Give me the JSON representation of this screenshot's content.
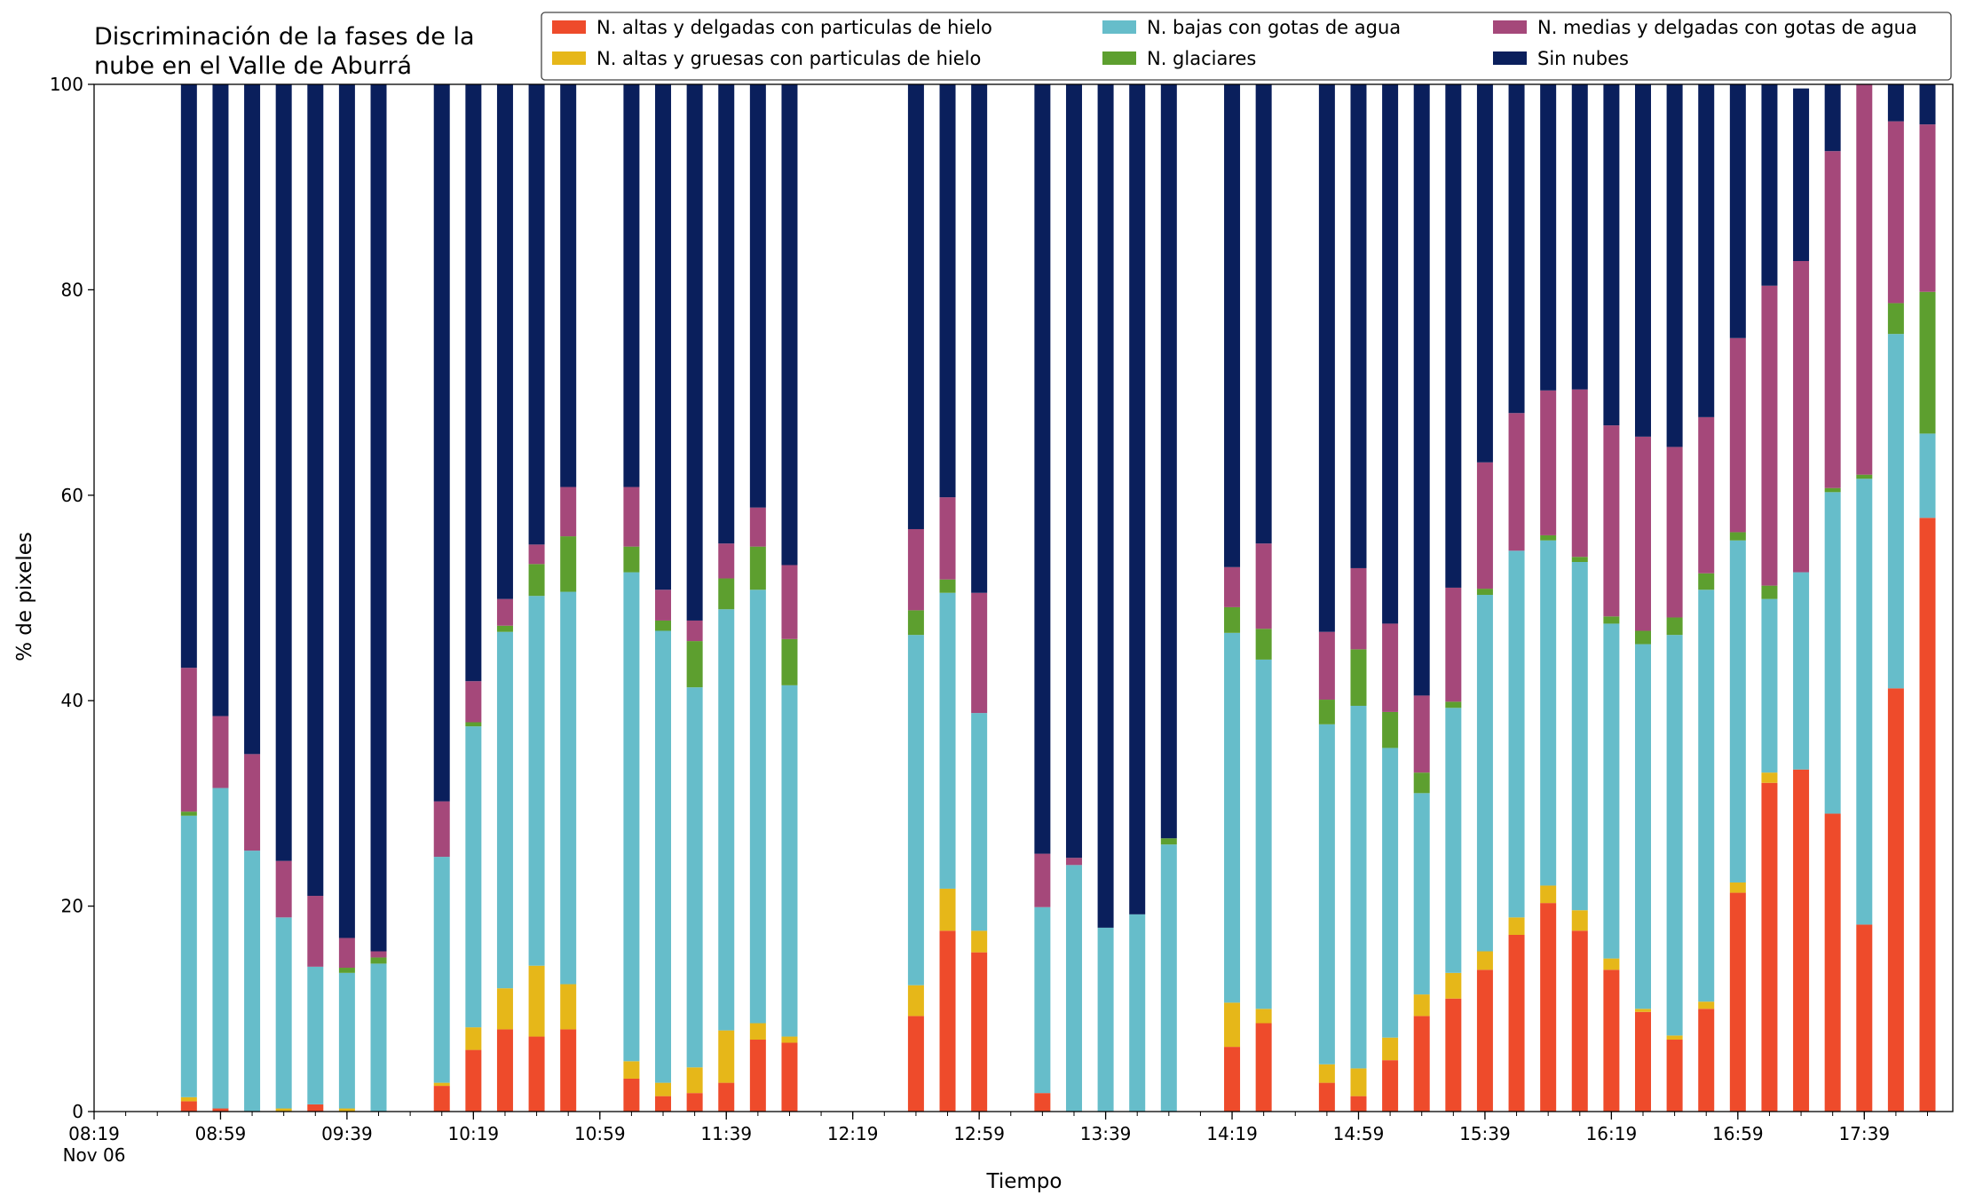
{
  "chart_data": {
    "type": "bar",
    "stacked": true,
    "title_lines": [
      "Discriminación de la fases de la",
      "nube en el Valle de Aburrá"
    ],
    "xlabel": "Tiempo",
    "ylabel": "% de pixeles",
    "ylim": [
      0,
      100
    ],
    "yticks": [
      "0",
      "20",
      "40",
      "60",
      "80",
      "100"
    ],
    "x_date_label": "Nov 06",
    "x_tick_labels": [
      "08:19",
      "08:59",
      "09:39",
      "10:19",
      "10:59",
      "11:39",
      "12:19",
      "12:59",
      "13:39",
      "14:19",
      "14:59",
      "15:39",
      "16:19",
      "16:59",
      "17:39"
    ],
    "x_start": "08:19",
    "x_end": "18:07",
    "minor_tick_step_minutes": 10,
    "times": [
      "08:49",
      "08:59",
      "09:09",
      "09:19",
      "09:29",
      "09:39",
      "09:49",
      "10:09",
      "10:19",
      "10:29",
      "10:39",
      "10:49",
      "11:09",
      "11:19",
      "11:29",
      "11:39",
      "11:49",
      "11:59",
      "12:39",
      "12:49",
      "12:59",
      "13:19",
      "13:29",
      "13:39",
      "13:49",
      "13:59",
      "14:19",
      "14:29",
      "14:49",
      "14:59",
      "15:09",
      "15:19",
      "15:29",
      "15:39",
      "15:49",
      "15:59",
      "16:09",
      "16:19",
      "16:29",
      "16:39",
      "16:49",
      "16:59",
      "17:09",
      "17:19",
      "17:29",
      "17:39",
      "17:49",
      "17:59"
    ],
    "series": [
      {
        "name": "N. altas y delgadas con particulas de hielo",
        "color": "#ee4b2b",
        "values": [
          1,
          0.3,
          0,
          0,
          0.7,
          0,
          0,
          2.5,
          6,
          8,
          7.3,
          8,
          3.2,
          1.5,
          1.8,
          2.8,
          7,
          6.7,
          9.3,
          17.6,
          15.5,
          1.8,
          0,
          0,
          0,
          0,
          6.3,
          8.6,
          2.8,
          1.5,
          5,
          9.3,
          11,
          13.8,
          17.2,
          20.3,
          17.6,
          13.8,
          9.7,
          7,
          10,
          21.3,
          32,
          33.3,
          29,
          18.2,
          41.2,
          57.8
        ]
      },
      {
        "name": "N. altas y gruesas con particulas de hielo",
        "color": "#e6b719",
        "values": [
          0.4,
          0,
          0,
          0.3,
          0,
          0.3,
          0,
          0.3,
          2.2,
          4,
          6.9,
          4.4,
          1.7,
          1.3,
          2.5,
          5.1,
          1.6,
          0.6,
          3,
          4.1,
          2.1,
          0,
          0,
          0,
          0,
          0,
          4.3,
          1.4,
          1.8,
          2.7,
          2.2,
          2.1,
          2.5,
          1.8,
          1.7,
          1.7,
          2,
          1.1,
          0.3,
          0.4,
          0.7,
          1,
          1,
          0,
          0,
          0,
          0,
          0
        ]
      },
      {
        "name": "N. bajas con gotas de agua",
        "color": "#66bdca",
        "values": [
          27.4,
          31.2,
          25.4,
          18.6,
          13.4,
          13.2,
          14.4,
          22,
          29.3,
          34.7,
          36,
          38.2,
          47.6,
          44,
          37,
          41,
          42.2,
          34.2,
          34.1,
          28.8,
          21.2,
          18.1,
          24,
          17.9,
          19.2,
          26,
          36,
          34,
          33.1,
          35.3,
          28.2,
          19.6,
          25.8,
          34.7,
          35.7,
          33.6,
          33.9,
          32.6,
          35.5,
          39,
          40.1,
          33.3,
          16.9,
          19.2,
          31.3,
          43.4,
          34.5,
          8.2
        ]
      },
      {
        "name": "N. glaciares",
        "color": "#5d9f2f",
        "values": [
          0.4,
          0,
          0,
          0,
          0,
          0.5,
          0.6,
          0,
          0.4,
          0.6,
          3.1,
          5.4,
          2.5,
          1,
          4.5,
          3,
          4.2,
          4.5,
          2.4,
          1.3,
          0,
          0,
          0,
          0,
          0,
          0.6,
          2.5,
          3,
          2.4,
          5.5,
          3.5,
          2,
          0.6,
          0.6,
          0,
          0.5,
          0.5,
          0.7,
          1.3,
          1.7,
          1.6,
          0.8,
          1.3,
          0,
          0.4,
          0.4,
          3,
          13.8
        ]
      },
      {
        "name": "N. medias y delgadas con gotas de agua",
        "color": "#a5487a",
        "values": [
          14,
          7,
          9.4,
          5.5,
          6.9,
          2.9,
          0.6,
          5.4,
          4,
          2.6,
          1.9,
          4.8,
          5.8,
          3,
          2,
          3.4,
          3.8,
          7.2,
          7.9,
          8,
          11.7,
          5.2,
          0.7,
          0,
          0,
          0,
          3.9,
          8.3,
          6.6,
          7.9,
          8.6,
          7.5,
          11.1,
          12.3,
          13.4,
          14.1,
          16.3,
          18.6,
          18.9,
          16.6,
          15.2,
          18.9,
          29.2,
          30.3,
          32.8,
          38.4,
          17.7,
          16.3
        ]
      },
      {
        "name": "Sin nubes",
        "color": "#0a1f5c",
        "values": [
          56.8,
          61.5,
          65.2,
          75.6,
          79,
          83.1,
          84.4,
          69.8,
          58.1,
          50.1,
          44.8,
          39.2,
          39.2,
          49.2,
          52.2,
          44.7,
          41.2,
          46.8,
          43.3,
          40.2,
          49.5,
          74.9,
          75.3,
          82.1,
          80.8,
          73.4,
          47,
          44.7,
          53.3,
          47.1,
          52.5,
          61.5,
          49,
          36.8,
          32,
          29.8,
          29.7,
          33.2,
          34.3,
          35.3,
          32.4,
          24.7,
          19.6,
          16.8,
          6.5,
          0,
          3.6,
          3.9
        ]
      }
    ],
    "legend": {
      "placement": "top-right",
      "order": [
        "N. altas y delgadas con particulas de hielo",
        "N. bajas con gotas de agua",
        "N. medias y delgadas con gotas de agua",
        "N. altas y gruesas con particulas de hielo",
        "N. glaciares",
        "Sin nubes"
      ]
    },
    "grid": false
  }
}
